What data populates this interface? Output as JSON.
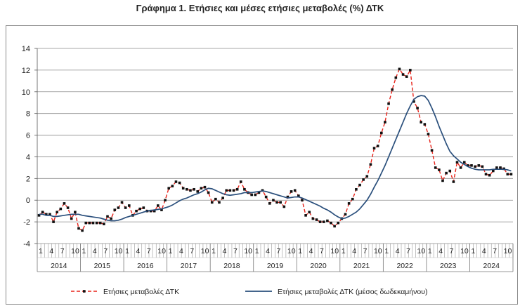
{
  "chart_data": {
    "type": "line",
    "title": "Γράφημα 1. Ετήσιες και μέσες ετήσιες μεταβολές (%) ΔΤΚ",
    "xlabel": "",
    "ylabel": "",
    "ylim": [
      -4,
      14
    ],
    "yticks": [
      -4,
      -2,
      0,
      2,
      4,
      6,
      8,
      10,
      12,
      14
    ],
    "grid": true,
    "legend_position": "bottom",
    "x_month_labels": [
      "1",
      "4",
      "7",
      "10"
    ],
    "years": [
      "2014",
      "2015",
      "2016",
      "2017",
      "2018",
      "2019",
      "2020",
      "2021",
      "2022",
      "2023",
      "2024"
    ],
    "x_months": 132,
    "series": [
      {
        "name": "Ετήσιες μεταβολές ΔΤΚ",
        "color": "#e8231a",
        "style": "dashed-markers",
        "values": [
          -1.4,
          -1.1,
          -1.3,
          -1.3,
          -2.0,
          -1.1,
          -0.8,
          -0.3,
          -0.7,
          -1.7,
          -1.1,
          -2.6,
          -2.8,
          -2.1,
          -2.1,
          -2.1,
          -2.1,
          -2.1,
          -2.2,
          -1.5,
          -1.7,
          -0.9,
          -0.7,
          -0.2,
          -0.7,
          -0.5,
          -1.4,
          -1.0,
          -0.8,
          -0.7,
          -1.0,
          -1.0,
          -1.0,
          -0.5,
          -0.9,
          0.0,
          1.1,
          1.3,
          1.7,
          1.6,
          1.1,
          1.0,
          0.9,
          1.0,
          0.8,
          1.1,
          1.2,
          0.7,
          -0.2,
          0.1,
          -0.2,
          0.2,
          0.9,
          0.9,
          0.9,
          1.0,
          1.7,
          1.0,
          0.7,
          0.5,
          0.5,
          0.7,
          0.9,
          0.3,
          -0.3,
          0.0,
          -0.2,
          -0.2,
          -0.6,
          0.3,
          0.8,
          0.9,
          0.4,
          0.0,
          -1.4,
          -1.1,
          -1.7,
          -1.8,
          -2.0,
          -2.0,
          -1.9,
          -2.1,
          -2.4,
          -2.1,
          -1.7,
          -1.3,
          -0.3,
          0.1,
          1.0,
          1.4,
          1.9,
          2.2,
          3.3,
          4.8,
          5.0,
          6.2,
          7.2,
          8.9,
          10.2,
          11.3,
          12.1,
          11.6,
          11.4,
          12.0,
          9.1,
          8.5,
          7.2,
          7.0,
          6.1,
          4.6,
          3.0,
          2.8,
          1.8,
          2.5,
          2.7,
          1.7,
          3.5,
          3.0,
          3.5,
          3.2,
          3.2,
          3.1,
          3.2,
          3.1,
          2.4,
          2.3,
          2.7,
          3.0,
          3.0,
          2.9,
          2.4,
          2.4
        ]
      },
      {
        "name": "Ετήσιες μεταβολές ΔΤΚ (μέσος δωδεκαμήνου)",
        "color": "#2a4f7c",
        "style": "solid",
        "values": [
          -1.3,
          -1.3,
          -1.4,
          -1.4,
          -1.5,
          -1.5,
          -1.45,
          -1.4,
          -1.35,
          -1.3,
          -1.3,
          -1.3,
          -1.4,
          -1.45,
          -1.5,
          -1.55,
          -1.6,
          -1.65,
          -1.75,
          -1.85,
          -1.9,
          -1.9,
          -1.85,
          -1.75,
          -1.6,
          -1.5,
          -1.4,
          -1.3,
          -1.2,
          -1.1,
          -1.0,
          -0.95,
          -0.9,
          -0.85,
          -0.8,
          -0.7,
          -0.6,
          -0.45,
          -0.25,
          -0.05,
          0.1,
          0.2,
          0.35,
          0.5,
          0.6,
          0.75,
          0.95,
          1.1,
          1.05,
          0.9,
          0.75,
          0.6,
          0.5,
          0.45,
          0.5,
          0.55,
          0.6,
          0.7,
          0.7,
          0.7,
          0.75,
          0.8,
          0.85,
          0.8,
          0.7,
          0.6,
          0.5,
          0.4,
          0.3,
          0.2,
          0.25,
          0.3,
          0.3,
          0.2,
          0.05,
          -0.1,
          -0.25,
          -0.4,
          -0.55,
          -0.75,
          -0.9,
          -1.1,
          -1.35,
          -1.55,
          -1.7,
          -1.65,
          -1.5,
          -1.3,
          -1.1,
          -0.8,
          -0.4,
          0.0,
          0.55,
          1.2,
          1.8,
          2.5,
          3.2,
          4.0,
          4.8,
          5.6,
          6.4,
          7.2,
          8.0,
          8.7,
          9.3,
          9.55,
          9.65,
          9.6,
          9.2,
          8.5,
          7.7,
          6.8,
          6.0,
          5.2,
          4.5,
          4.1,
          3.8,
          3.5,
          3.3,
          3.1,
          2.95,
          2.85,
          2.8,
          2.8,
          2.8,
          2.8,
          2.85,
          2.85,
          2.85,
          2.85,
          2.8,
          2.7
        ]
      }
    ]
  }
}
